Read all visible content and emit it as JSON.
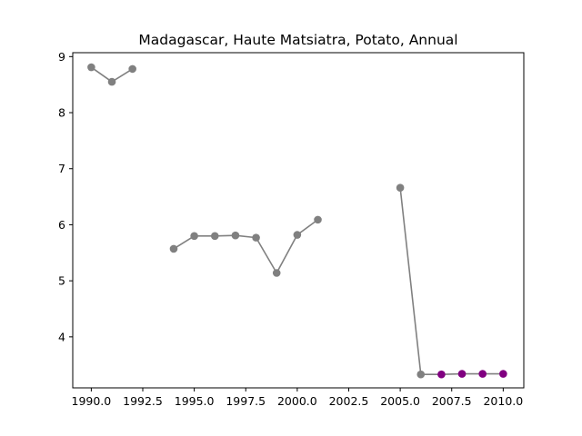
{
  "chart_data": {
    "type": "line",
    "title": "Madagascar, Haute Matsiatra, Potato, Annual",
    "xlabel": "",
    "ylabel": "",
    "xlim": [
      1989.1,
      2011.0
    ],
    "ylim": [
      3.09,
      9.07
    ],
    "x_ticks": [
      1990.0,
      1992.5,
      1995.0,
      1997.5,
      2000.0,
      2002.5,
      2005.0,
      2007.5,
      2010.0
    ],
    "x_tick_labels": [
      "1990.0",
      "1992.5",
      "1995.0",
      "1997.5",
      "2000.0",
      "2002.5",
      "2005.0",
      "2007.5",
      "2010.0"
    ],
    "y_ticks": [
      4,
      5,
      6,
      7,
      8,
      9
    ],
    "y_tick_labels": [
      "4",
      "5",
      "6",
      "7",
      "8",
      "9"
    ],
    "grid": false,
    "line_color": "#808080",
    "series": [
      {
        "segments": [
          [
            [
              1990,
              8.81
            ],
            [
              1991,
              8.55
            ],
            [
              1992,
              8.78
            ]
          ],
          [
            [
              1994,
              5.57
            ],
            [
              1995,
              5.8
            ],
            [
              1996,
              5.8
            ],
            [
              1997,
              5.81
            ],
            [
              1998,
              5.77
            ],
            [
              1999,
              5.14
            ],
            [
              2000,
              5.82
            ],
            [
              2001,
              6.09
            ]
          ],
          [
            [
              2005,
              6.66
            ],
            [
              2006,
              3.33
            ],
            [
              2007,
              3.33
            ],
            [
              2008,
              3.34
            ],
            [
              2009,
              3.34
            ],
            [
              2010,
              3.34
            ]
          ]
        ],
        "marker_colors": {
          "default": "#808080",
          "highlight": "#800080",
          "highlight_x": [
            2007,
            2008,
            2009,
            2010
          ]
        }
      }
    ]
  }
}
